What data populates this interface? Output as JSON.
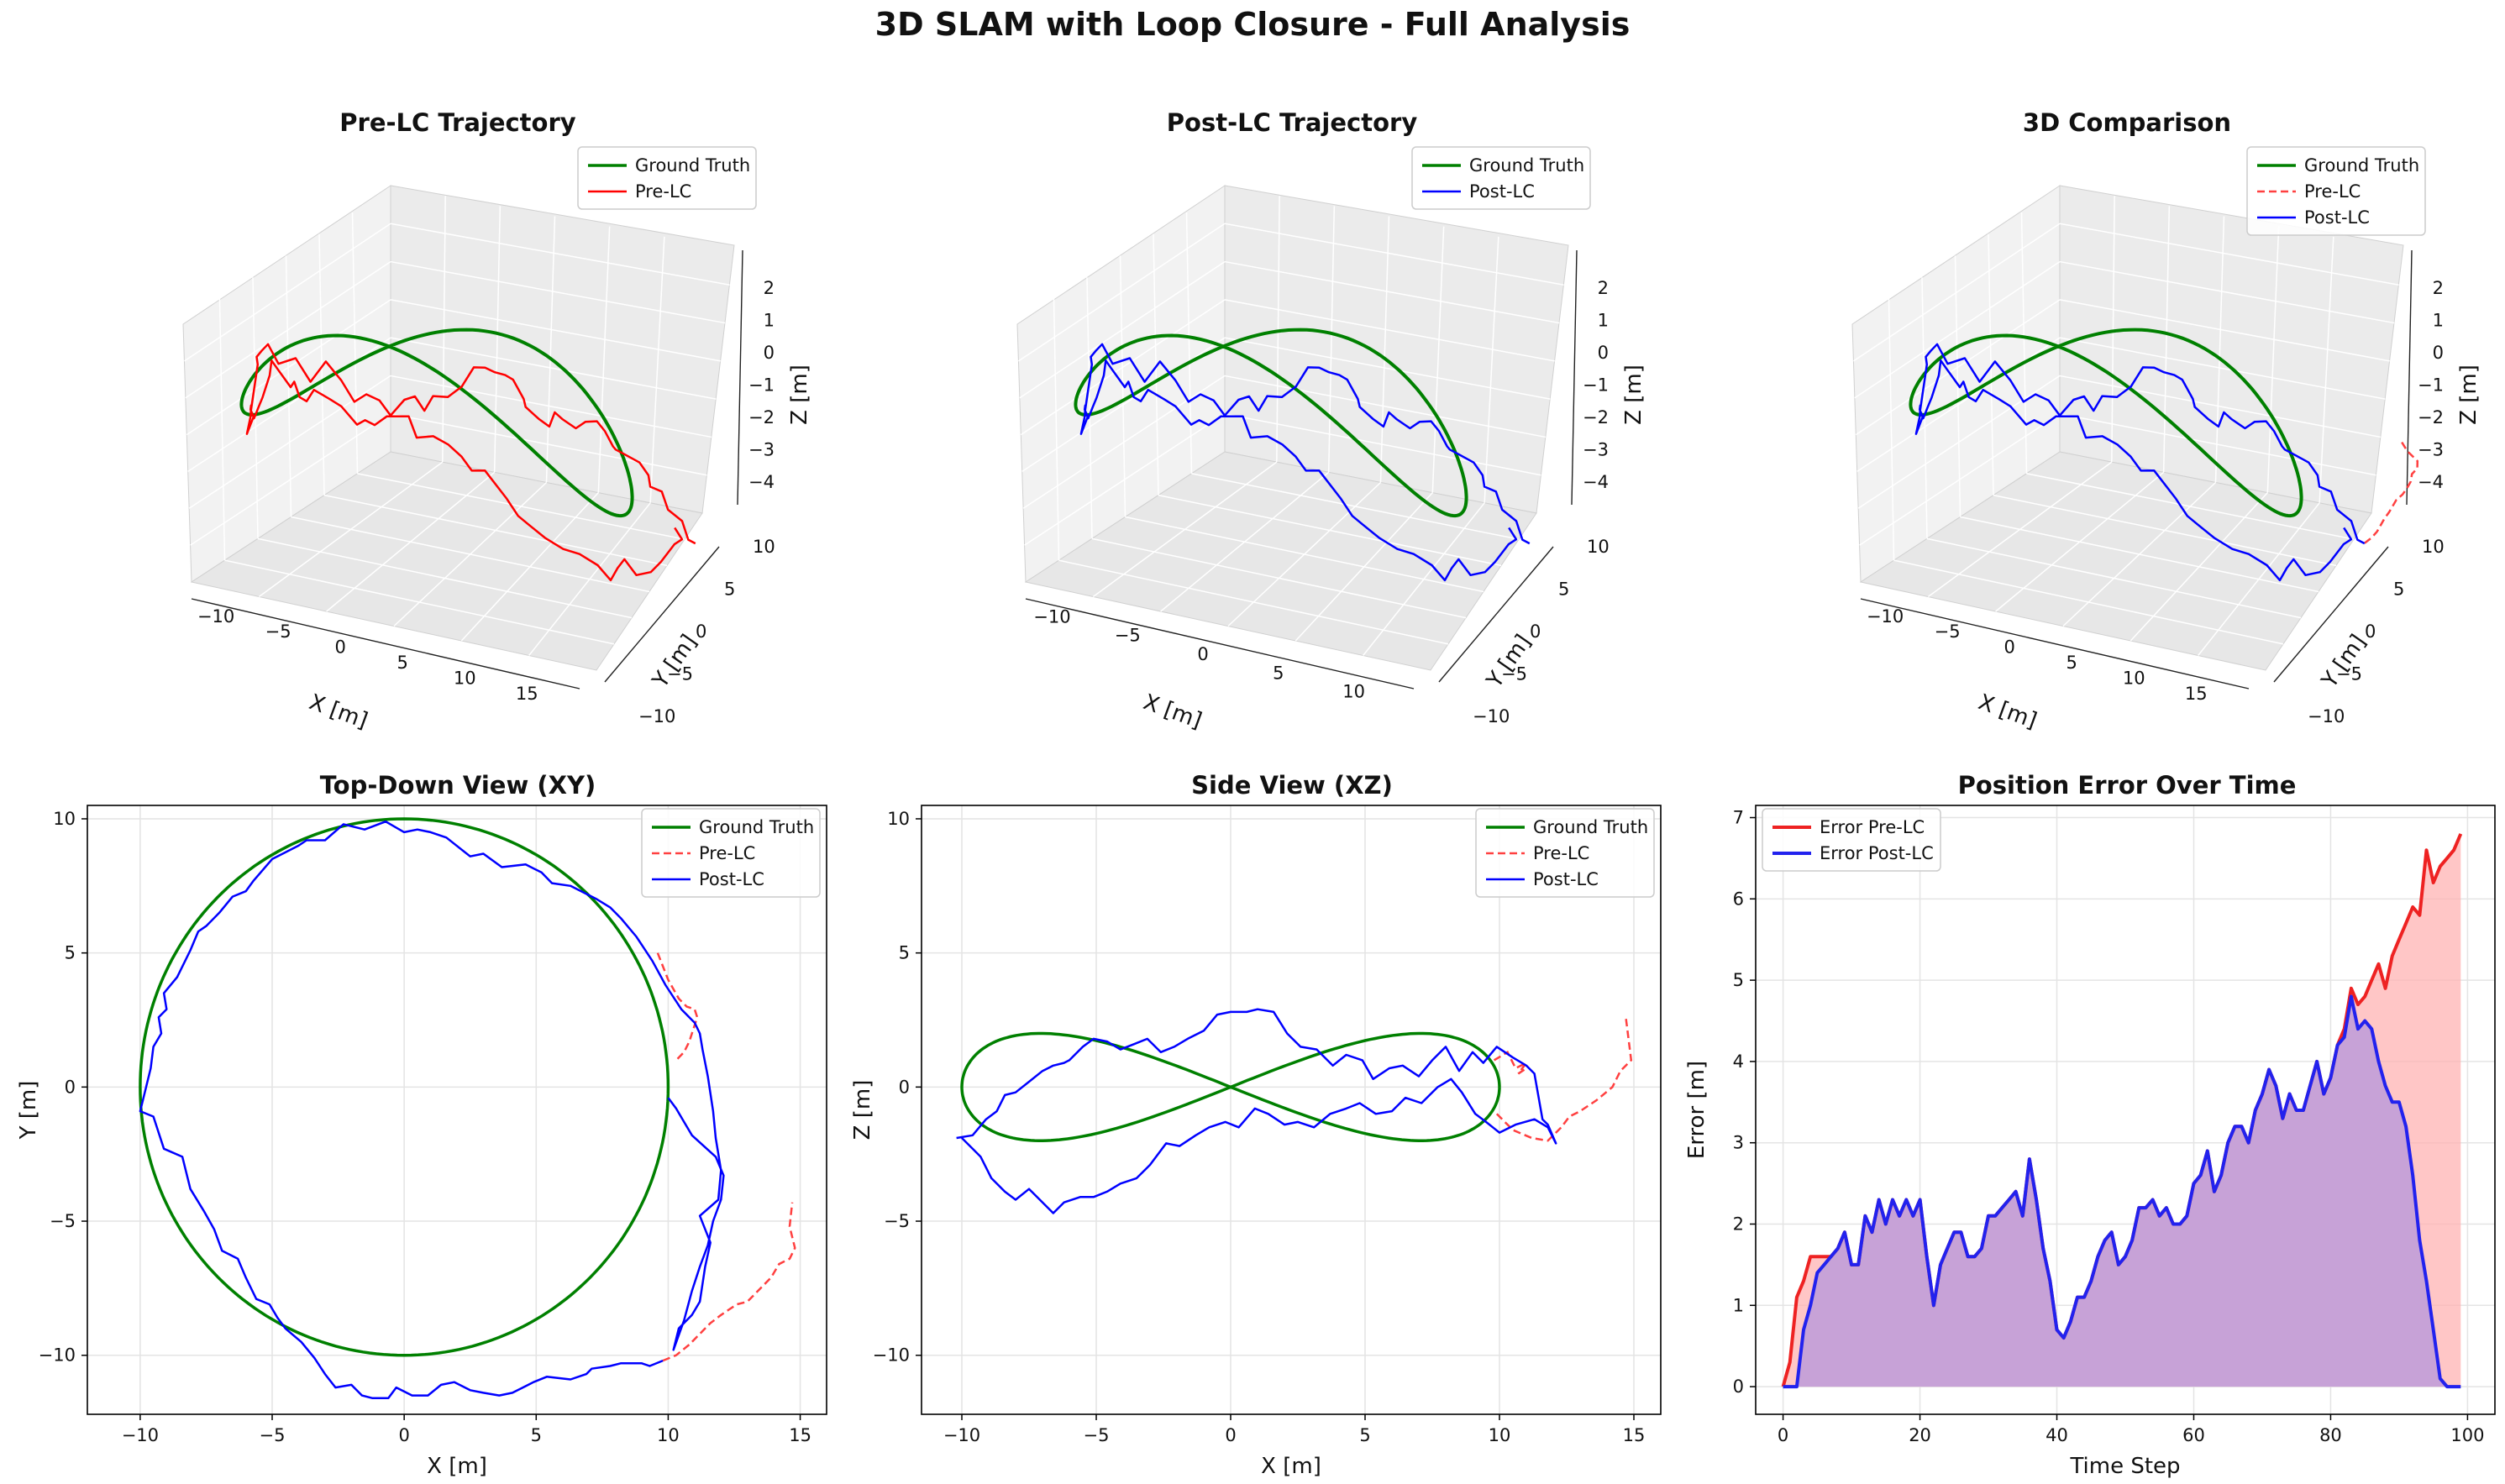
{
  "title": "3D SLAM with Loop Closure - Full Analysis",
  "colors": {
    "ground_truth": "#008000",
    "pre_lc": "#ff0000",
    "pre_lc_dashed": "#ff4040",
    "post_lc": "#0000ff",
    "pre_fill": "#ffb3b3",
    "post_fill": "#c4a0d8"
  },
  "chart_data": [
    {
      "id": "pre3d",
      "type": "line3d",
      "title": "Pre-LC Trajectory",
      "xlabel": "X [m]",
      "ylabel": "Y [m]",
      "zlabel": "Z [m]",
      "x_ticks": [
        "−10",
        "−5",
        "0",
        "5",
        "10",
        "15"
      ],
      "y_ticks": [
        "−10",
        "−5",
        "0",
        "5",
        "10"
      ],
      "z_ticks": [
        "2",
        "1",
        "0",
        "−1",
        "−2",
        "−3",
        "−4"
      ],
      "legend": [
        "Ground Truth",
        "Pre-LC"
      ],
      "legend_position": "upper-right"
    },
    {
      "id": "post3d",
      "type": "line3d",
      "title": "Post-LC Trajectory",
      "xlabel": "X [m]",
      "ylabel": "Y [m]",
      "zlabel": "Z [m]",
      "x_ticks": [
        "−10",
        "−5",
        "0",
        "5",
        "10"
      ],
      "y_ticks": [
        "−10",
        "−5",
        "0",
        "5",
        "10"
      ],
      "z_ticks": [
        "2",
        "1",
        "0",
        "−1",
        "−2",
        "−3",
        "−4"
      ],
      "legend": [
        "Ground Truth",
        "Post-LC"
      ],
      "legend_position": "upper-right"
    },
    {
      "id": "cmp3d",
      "type": "line3d",
      "title": "3D Comparison",
      "xlabel": "X [m]",
      "ylabel": "Y [m]",
      "zlabel": "Z [m]",
      "x_ticks": [
        "−10",
        "−5",
        "0",
        "5",
        "10",
        "15"
      ],
      "y_ticks": [
        "−10",
        "−5",
        "0",
        "5",
        "10"
      ],
      "z_ticks": [
        "2",
        "1",
        "0",
        "−1",
        "−2",
        "−3",
        "−4"
      ],
      "legend": [
        "Ground Truth",
        "Pre-LC",
        "Post-LC"
      ],
      "legend_position": "upper-right"
    },
    {
      "id": "xy",
      "type": "line",
      "title": "Top-Down View (XY)",
      "xlabel": "X [m]",
      "ylabel": "Y [m]",
      "xlim": [
        -12,
        16
      ],
      "ylim": [
        -12.2,
        10.5
      ],
      "xticks": [
        -10,
        -5,
        0,
        5,
        10,
        15
      ],
      "yticks": [
        -10,
        -5,
        0,
        5,
        10
      ],
      "grid": true,
      "legend": [
        "Ground Truth",
        "Pre-LC",
        "Post-LC"
      ],
      "legend_position": "upper-right",
      "series": [
        {
          "name": "Ground Truth",
          "shape": "circle",
          "center": [
            0,
            0
          ],
          "radius": 10
        },
        {
          "name": "Pre-LC",
          "style": "dashed",
          "x": [
            9.6,
            10.0,
            10.4,
            10.7,
            11.0,
            11.1,
            10.9,
            10.8,
            10.6,
            10.3
          ],
          "y": [
            5.0,
            4.0,
            3.3,
            3.0,
            2.9,
            2.6,
            2.0,
            1.7,
            1.3,
            1.0
          ]
        },
        {
          "name": "Pre-LC",
          "style": "dashed",
          "x": [
            9.8,
            10.3,
            10.8,
            11.2,
            11.6,
            12.0,
            12.3,
            12.6,
            13.0,
            13.5,
            13.9,
            14.2,
            14.6,
            14.8,
            14.6,
            14.7
          ],
          "y": [
            -10.2,
            -10.0,
            -9.6,
            -9.2,
            -8.8,
            -8.5,
            -8.3,
            -8.1,
            -8.0,
            -7.5,
            -7.1,
            -6.6,
            -6.4,
            -6.0,
            -5.2,
            -4.3
          ]
        },
        {
          "name": "Post-LC",
          "x": [
            9.8,
            9.3,
            9.0,
            8.2,
            7.8,
            7.1,
            6.9,
            6.3,
            5.4,
            4.9,
            4.7,
            4.1,
            3.6,
            3.0,
            2.5,
            1.9,
            1.4,
            0.9,
            0.3,
            -0.3,
            -0.6,
            -1.2,
            -1.6,
            -2.0,
            -2.6,
            -3.0,
            -3.4,
            -3.9,
            -4.5,
            -4.8,
            -5.1,
            -5.6,
            -6.0,
            -6.3,
            -6.9,
            -7.2,
            -7.6,
            -8.1,
            -8.4,
            -9.1,
            -9.5,
            -10.0,
            -9.6,
            -9.5,
            -9.2,
            -9.3,
            -9.0,
            -9.1,
            -8.6,
            -8.1,
            -7.8,
            -7.5,
            -7.0,
            -6.5,
            -6.0,
            -5.7,
            -5.0,
            -4.0,
            -3.7,
            -3.4,
            -3.0,
            -2.3,
            -1.5,
            -0.7,
            0.0,
            0.5,
            1.0,
            1.6,
            2.5,
            3.0,
            3.7,
            4.6,
            5.2,
            5.6,
            6.3,
            7.3,
            7.8,
            8.2,
            8.8,
            9.4,
            9.9,
            10.5,
            11.0,
            11.2,
            11.3,
            11.5,
            11.7,
            11.8,
            12.0,
            11.9,
            11.2,
            11.6,
            11.4,
            11.2,
            10.9,
            10.4,
            10.2,
            10.6,
            10.9,
            11.2,
            11.5,
            11.7,
            12.0,
            12.1,
            11.8,
            10.9,
            10.6,
            10.3,
            10.0
          ],
          "y": [
            -10.2,
            -10.4,
            -10.3,
            -10.3,
            -10.4,
            -10.5,
            -10.7,
            -10.9,
            -10.8,
            -11.0,
            -11.1,
            -11.4,
            -11.5,
            -11.4,
            -11.3,
            -11.0,
            -11.1,
            -11.5,
            -11.5,
            -11.2,
            -11.6,
            -11.6,
            -11.5,
            -11.1,
            -11.2,
            -10.7,
            -10.1,
            -9.5,
            -9.0,
            -8.6,
            -8.1,
            -7.9,
            -7.1,
            -6.4,
            -6.1,
            -5.3,
            -4.6,
            -3.8,
            -2.6,
            -2.3,
            -1.1,
            -0.9,
            0.7,
            1.5,
            2.0,
            2.6,
            2.9,
            3.5,
            4.1,
            5.1,
            5.8,
            6.0,
            6.5,
            7.1,
            7.3,
            7.7,
            8.5,
            9.0,
            9.2,
            9.2,
            9.2,
            9.8,
            9.6,
            9.9,
            9.5,
            9.6,
            9.5,
            9.3,
            8.6,
            8.7,
            8.2,
            8.3,
            8.0,
            7.6,
            7.5,
            7.0,
            6.7,
            6.3,
            5.6,
            4.7,
            3.8,
            2.9,
            2.4,
            2.0,
            1.4,
            0.4,
            -0.9,
            -1.9,
            -3.1,
            -4.2,
            -4.8,
            -5.8,
            -6.7,
            -8.0,
            -8.5,
            -9.0,
            -9.8,
            -8.7,
            -7.6,
            -6.7,
            -5.9,
            -5.0,
            -4.2,
            -3.3,
            -2.6,
            -1.8,
            -1.3,
            -0.8,
            -0.4
          ]
        }
      ]
    },
    {
      "id": "xz",
      "type": "line",
      "title": "Side View (XZ)",
      "xlabel": "X [m]",
      "ylabel": "Z [m]",
      "xlim": [
        -11.5,
        16
      ],
      "ylim": [
        -12.2,
        10.5
      ],
      "xticks": [
        -10,
        -5,
        0,
        5,
        10,
        15
      ],
      "yticks": [
        -10,
        -5,
        0,
        5,
        10
      ],
      "grid": true,
      "legend": [
        "Ground Truth",
        "Pre-LC",
        "Post-LC"
      ],
      "legend_position": "upper-right",
      "series": [
        {
          "name": "Ground Truth",
          "shape": "figure-eight",
          "x_amplitude": 10,
          "z_amplitude": 2
        },
        {
          "name": "Pre-LC",
          "style": "dashed",
          "x": [
            9.8,
            10.3,
            10.6,
            11.0,
            10.7,
            11.0
          ],
          "y": [
            1.0,
            1.3,
            0.7,
            0.9,
            0.5,
            0.7
          ]
        },
        {
          "name": "Pre-LC",
          "style": "dashed",
          "x": [
            9.9,
            10.5,
            11.2,
            11.8,
            12.3,
            12.6,
            13.0,
            13.6,
            14.2,
            14.5,
            14.9,
            14.7
          ],
          "y": [
            -1.0,
            -1.6,
            -1.9,
            -2.0,
            -1.5,
            -1.1,
            -0.9,
            -0.5,
            0.0,
            0.6,
            1.0,
            2.6
          ]
        },
        {
          "name": "Post-LC",
          "x": [
            -10.2,
            -9.6,
            -9.1,
            -8.7,
            -8.4,
            -8.0,
            -7.5,
            -7.0,
            -6.6,
            -6.2,
            -6.0,
            -5.5,
            -5.1,
            -4.6,
            -4.1,
            -3.6,
            -3.1,
            -2.6,
            -2.1,
            -1.6,
            -1.0,
            -0.5,
            0.0,
            0.6,
            1.0,
            1.6,
            2.1,
            2.6,
            3.2,
            3.8,
            4.3,
            4.9,
            5.3,
            5.9,
            6.4,
            7.0,
            7.5,
            8.0,
            8.5,
            9.0,
            9.4,
            9.9,
            10.5,
            11.0,
            11.3,
            11.6,
            11.8,
            12.1,
            11.8,
            11.3,
            10.6,
            10.0,
            9.5,
            9.1,
            8.6,
            8.2,
            7.7,
            7.1,
            6.5,
            6.0,
            5.4,
            4.8,
            4.3,
            3.7,
            3.1,
            2.5,
            2.0,
            1.4,
            0.9,
            0.3,
            -0.2,
            -0.8,
            -1.3,
            -1.9,
            -2.4,
            -3.0,
            -3.5,
            -4.1,
            -4.6,
            -5.1,
            -5.6,
            -6.2,
            -6.6,
            -7.1,
            -7.5,
            -8.0,
            -8.4,
            -8.9,
            -9.3,
            -9.6,
            -10.0
          ],
          "y": [
            -1.9,
            -1.8,
            -1.2,
            -0.9,
            -0.3,
            -0.2,
            0.2,
            0.6,
            0.8,
            0.9,
            1.0,
            1.5,
            1.8,
            1.7,
            1.4,
            1.6,
            1.8,
            1.3,
            1.5,
            1.8,
            2.1,
            2.7,
            2.8,
            2.8,
            2.9,
            2.8,
            2.0,
            1.5,
            1.4,
            0.8,
            1.2,
            1.0,
            0.3,
            0.7,
            0.8,
            0.4,
            1.0,
            1.5,
            0.6,
            1.3,
            0.9,
            1.5,
            1.1,
            0.8,
            0.5,
            -1.2,
            -1.4,
            -2.1,
            -1.5,
            -1.2,
            -1.4,
            -1.7,
            -1.3,
            -1.0,
            -0.2,
            0.3,
            0.0,
            -0.6,
            -0.4,
            -0.9,
            -1.0,
            -0.6,
            -0.8,
            -1.0,
            -1.5,
            -1.3,
            -1.4,
            -1.0,
            -0.8,
            -1.5,
            -1.3,
            -1.5,
            -1.8,
            -2.2,
            -2.1,
            -2.9,
            -3.4,
            -3.6,
            -3.9,
            -4.1,
            -4.1,
            -4.3,
            -4.7,
            -4.2,
            -3.8,
            -4.2,
            -3.9,
            -3.4,
            -2.6,
            -2.3,
            -1.9
          ]
        }
      ]
    },
    {
      "id": "err",
      "type": "area",
      "title": "Position Error Over Time",
      "xlabel": "Time Step",
      "ylabel": "Error [m]",
      "xlim": [
        -4,
        104
      ],
      "ylim": [
        -0.34,
        7.15
      ],
      "xticks": [
        0,
        20,
        40,
        60,
        80,
        100
      ],
      "yticks": [
        0,
        1,
        2,
        3,
        4,
        5,
        6,
        7
      ],
      "grid": true,
      "legend": [
        "Error Pre-LC",
        "Error Post-LC"
      ],
      "legend_position": "upper-left",
      "x": [
        0,
        1,
        2,
        3,
        4,
        5,
        6,
        7,
        8,
        9,
        10,
        11,
        12,
        13,
        14,
        15,
        16,
        17,
        18,
        19,
        20,
        21,
        22,
        23,
        24,
        25,
        26,
        27,
        28,
        29,
        30,
        31,
        32,
        33,
        34,
        35,
        36,
        37,
        38,
        39,
        40,
        41,
        42,
        43,
        44,
        45,
        46,
        47,
        48,
        49,
        50,
        51,
        52,
        53,
        54,
        55,
        56,
        57,
        58,
        59,
        60,
        61,
        62,
        63,
        64,
        65,
        66,
        67,
        68,
        69,
        70,
        71,
        72,
        73,
        74,
        75,
        76,
        77,
        78,
        79,
        80,
        81,
        82,
        83,
        84,
        85,
        86,
        87,
        88,
        89,
        90,
        91,
        92,
        93,
        94,
        95,
        96,
        97,
        98,
        99
      ],
      "series": [
        {
          "name": "Error Pre-LC",
          "values": [
            0.0,
            0.3,
            1.1,
            1.3,
            1.6,
            1.6,
            1.6,
            1.6,
            1.7,
            1.9,
            1.5,
            1.5,
            2.1,
            1.9,
            2.3,
            2.0,
            2.3,
            2.1,
            2.3,
            2.1,
            2.3,
            1.6,
            1.0,
            1.5,
            1.7,
            1.9,
            1.9,
            1.6,
            1.6,
            1.7,
            2.1,
            2.1,
            2.2,
            2.3,
            2.4,
            2.1,
            2.8,
            2.3,
            1.7,
            1.3,
            0.7,
            0.6,
            0.8,
            1.1,
            1.1,
            1.3,
            1.6,
            1.8,
            1.9,
            1.5,
            1.6,
            1.8,
            2.2,
            2.2,
            2.3,
            2.1,
            2.2,
            2.0,
            2.0,
            2.1,
            2.5,
            2.6,
            2.9,
            2.4,
            2.6,
            3.0,
            3.2,
            3.2,
            3.0,
            3.4,
            3.6,
            3.9,
            3.7,
            3.3,
            3.6,
            3.4,
            3.4,
            3.7,
            4.0,
            3.6,
            3.8,
            4.2,
            4.4,
            4.9,
            4.7,
            4.8,
            5.0,
            5.2,
            4.9,
            5.3,
            5.5,
            5.7,
            5.9,
            5.8,
            6.6,
            6.2,
            6.4,
            6.5,
            6.6,
            6.8
          ]
        },
        {
          "name": "Error Post-LC",
          "values": [
            0.0,
            0.0,
            0.0,
            0.7,
            1.0,
            1.4,
            1.5,
            1.6,
            1.7,
            1.9,
            1.5,
            1.5,
            2.1,
            1.9,
            2.3,
            2.0,
            2.3,
            2.1,
            2.3,
            2.1,
            2.3,
            1.6,
            1.0,
            1.5,
            1.7,
            1.9,
            1.9,
            1.6,
            1.6,
            1.7,
            2.1,
            2.1,
            2.2,
            2.3,
            2.4,
            2.1,
            2.8,
            2.3,
            1.7,
            1.3,
            0.7,
            0.6,
            0.8,
            1.1,
            1.1,
            1.3,
            1.6,
            1.8,
            1.9,
            1.5,
            1.6,
            1.8,
            2.2,
            2.2,
            2.3,
            2.1,
            2.2,
            2.0,
            2.0,
            2.1,
            2.5,
            2.6,
            2.9,
            2.4,
            2.6,
            3.0,
            3.2,
            3.2,
            3.0,
            3.4,
            3.6,
            3.9,
            3.7,
            3.3,
            3.6,
            3.4,
            3.4,
            3.7,
            4.0,
            3.6,
            3.8,
            4.2,
            4.3,
            4.8,
            4.4,
            4.5,
            4.4,
            4.0,
            3.7,
            3.5,
            3.5,
            3.2,
            2.6,
            1.8,
            1.3,
            0.7,
            0.1,
            0.0,
            0.0,
            0.0
          ]
        }
      ]
    }
  ]
}
